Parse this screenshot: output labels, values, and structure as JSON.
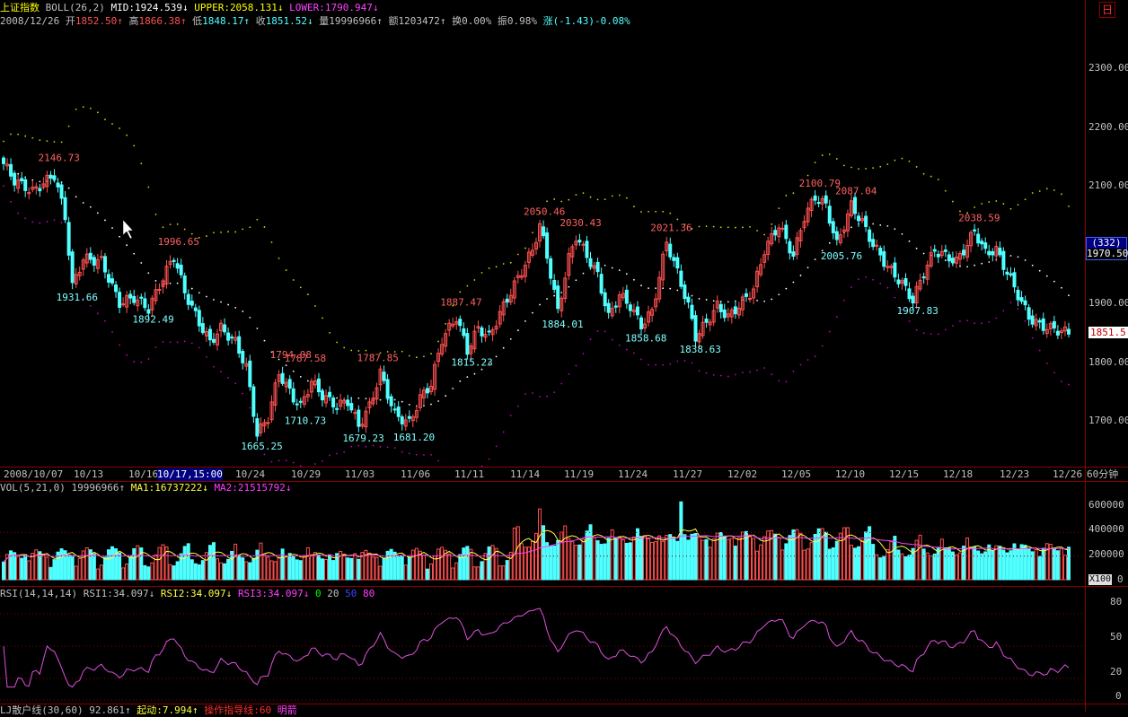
{
  "header": {
    "title": "上证指数",
    "indicator": "BOLL(26,2)",
    "mid": "MID:1924.539↓",
    "upper": "UPPER:2058.131↓",
    "lower": "LOWER:1790.947↓",
    "date": "2008/12/26",
    "open_label": "开",
    "open": "1852.50↑",
    "high_label": "高",
    "high": "1866.38↑",
    "low_label": "低",
    "low": "1848.17↑",
    "close_label": "收",
    "close": "1851.52↓",
    "volume_label": "量",
    "volume": "19996966↑",
    "amount_label": "额",
    "amount": "1203472↑",
    "turnover_label": "换",
    "turnover": "0.00%",
    "amplitude_label": "振",
    "amplitude": "0.98%",
    "change_label": "涨",
    "change": "(-1.43)-0.08%"
  },
  "corner_button": "日",
  "price_axis": {
    "labels": [
      "2300.00",
      "2200.00",
      "2100.00",
      "1900.00",
      "1800.00",
      "1700.00"
    ],
    "badge_count": "(332)",
    "badge_price": "1970.50",
    "last_price": "1851.5"
  },
  "dates": [
    "2008/10/07",
    "10/13",
    "10/16",
    "10/17,15:00",
    "10/24",
    "10/29",
    "11/03",
    "11/06",
    "11/11",
    "11/14",
    "11/19",
    "11/24",
    "11/27",
    "12/02",
    "12/05",
    "12/10",
    "12/15",
    "12/18",
    "12/23",
    "12/26"
  ],
  "period": "60分钟",
  "volume_panel": {
    "label": "VOL(5,21,0)",
    "value": "19996966↑",
    "ma1": "MA1:16737222↓",
    "ma2": "MA2:21515792↓",
    "axis": [
      "600000",
      "400000",
      "200000",
      "0"
    ],
    "unit": "X100"
  },
  "rsi_panel": {
    "label": "RSI(14,14,14)",
    "rsi1": "RSI1:34.097↓",
    "rsi2": "RSI2:34.097↓",
    "rsi3": "RSI3:34.097↓",
    "levels": [
      "0",
      "20",
      "50",
      "80"
    ],
    "axis": [
      "80",
      "50",
      "20",
      "0"
    ]
  },
  "bottom_row": {
    "text1": "LJ散户线(30,60)",
    "val1": "92.861↑",
    "text2": "起动:7.994↑",
    "text3": "操作指导线:60",
    "text4": "明箭"
  },
  "colors": {
    "up": "#ff5050",
    "down": "#50ffff",
    "upper": "#d4d400",
    "mid": "#ffffff",
    "lower": "#c000c0",
    "ma1": "#ffff40",
    "ma2": "#ff40ff",
    "rsi": "#e050e0",
    "axis": "#8b0000"
  },
  "chart_data": {
    "type": "candlestick",
    "title": "上证指数 60分钟",
    "ylim": [
      1620,
      2400
    ],
    "annotations": [
      {
        "label": "2146.73",
        "kind": "high",
        "x": 14
      },
      {
        "label": "1931.66",
        "kind": "low",
        "x": 19
      },
      {
        "label": "1996.65",
        "kind": "high",
        "x": 47
      },
      {
        "label": "1892.49",
        "kind": "low",
        "x": 40
      },
      {
        "label": "1794.08",
        "kind": "high",
        "x": 78
      },
      {
        "label": "1787.58",
        "kind": "high",
        "x": 82
      },
      {
        "label": "1665.25",
        "kind": "low",
        "x": 70
      },
      {
        "label": "1710.73",
        "kind": "low",
        "x": 82
      },
      {
        "label": "1787.85",
        "kind": "high",
        "x": 102
      },
      {
        "label": "1679.23",
        "kind": "low",
        "x": 98
      },
      {
        "label": "1681.20",
        "kind": "low",
        "x": 112
      },
      {
        "label": "1887.47",
        "kind": "high",
        "x": 125
      },
      {
        "label": "1815.23",
        "kind": "low",
        "x": 128
      },
      {
        "label": "2050.46",
        "kind": "high",
        "x": 148
      },
      {
        "label": "2030.43",
        "kind": "high",
        "x": 158
      },
      {
        "label": "1884.01",
        "kind": "low",
        "x": 153
      },
      {
        "label": "2021.36",
        "kind": "high",
        "x": 183
      },
      {
        "label": "1858.68",
        "kind": "low",
        "x": 176
      },
      {
        "label": "1838.63",
        "kind": "low",
        "x": 191
      },
      {
        "label": "2100.79",
        "kind": "high",
        "x": 224
      },
      {
        "label": "2087.04",
        "kind": "high",
        "x": 234
      },
      {
        "label": "2005.76",
        "kind": "low",
        "x": 230
      },
      {
        "label": "1907.83",
        "kind": "low",
        "x": 251
      },
      {
        "label": "2038.59",
        "kind": "high",
        "x": 268
      }
    ],
    "boll_params": {
      "period": 26,
      "width": 2
    },
    "volume_ylim": [
      0,
      700000
    ],
    "rsi_ylim": [
      0,
      90
    ]
  }
}
